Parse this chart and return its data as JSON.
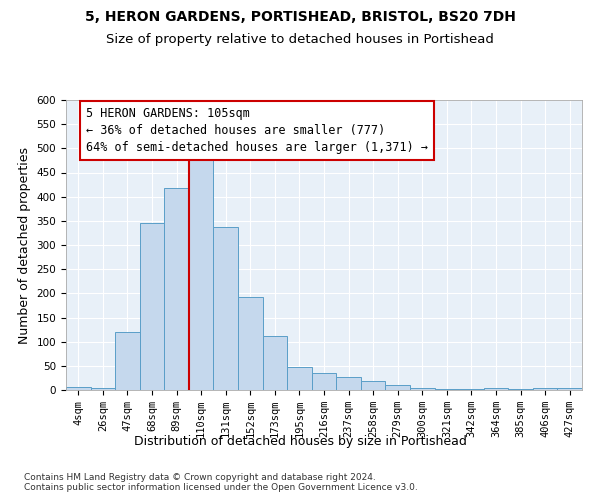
{
  "title1": "5, HERON GARDENS, PORTISHEAD, BRISTOL, BS20 7DH",
  "title2": "Size of property relative to detached houses in Portishead",
  "xlabel": "Distribution of detached houses by size in Portishead",
  "ylabel": "Number of detached properties",
  "footnote1": "Contains HM Land Registry data © Crown copyright and database right 2024.",
  "footnote2": "Contains public sector information licensed under the Open Government Licence v3.0.",
  "bar_labels": [
    "4sqm",
    "26sqm",
    "47sqm",
    "68sqm",
    "89sqm",
    "110sqm",
    "131sqm",
    "152sqm",
    "173sqm",
    "195sqm",
    "216sqm",
    "237sqm",
    "258sqm",
    "279sqm",
    "300sqm",
    "321sqm",
    "342sqm",
    "364sqm",
    "385sqm",
    "406sqm",
    "427sqm"
  ],
  "bar_values": [
    6,
    5,
    120,
    345,
    418,
    488,
    338,
    192,
    111,
    48,
    36,
    26,
    19,
    10,
    5,
    3,
    3,
    5,
    3,
    5,
    4
  ],
  "bar_color": "#c5d8ed",
  "bar_edge_color": "#5a9ec8",
  "vline_x": 4.5,
  "vline_color": "#cc0000",
  "annotation_text": "5 HERON GARDENS: 105sqm\n← 36% of detached houses are smaller (777)\n64% of semi-detached houses are larger (1,371) →",
  "annotation_box_color": "#ffffff",
  "annotation_box_edge": "#cc0000",
  "ylim": [
    0,
    600
  ],
  "yticks": [
    0,
    50,
    100,
    150,
    200,
    250,
    300,
    350,
    400,
    450,
    500,
    550,
    600
  ],
  "plot_bg_color": "#e8f0f8",
  "title1_fontsize": 10,
  "title2_fontsize": 9.5,
  "xlabel_fontsize": 9,
  "ylabel_fontsize": 9,
  "tick_fontsize": 7.5,
  "annotation_fontsize": 8.5,
  "footnote_fontsize": 6.5
}
